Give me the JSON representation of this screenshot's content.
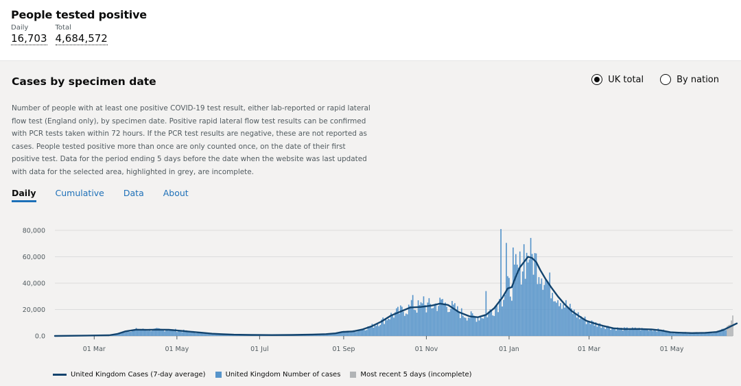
{
  "headline": {
    "title": "People tested positive",
    "daily_label": "Daily",
    "daily_value": "16,703",
    "total_label": "Total",
    "total_value": "4,684,572"
  },
  "card": {
    "title": "Cases by specimen date",
    "radio_uk": "UK total",
    "radio_nation": "By nation",
    "description": "Number of people with at least one positive COVID-19 test result, either lab-reported or rapid lateral flow test (England only), by specimen date. Positive rapid lateral flow test results can be confirmed with PCR tests taken within 72 hours. If the PCR test results are negative, these are not reported as cases. People tested positive more than once are only counted once, on the date of their first positive test. Data for the period ending 5 days before the date when the website was last updated with data for the selected area, highlighted in grey, are incomplete.",
    "tabs": [
      "Daily",
      "Cumulative",
      "Data",
      "About"
    ]
  },
  "colors": {
    "line": "#12436d",
    "bars": "#5694ca",
    "incomplete": "#b1b4b6",
    "tab_link": "#1d70b8"
  },
  "chart_data": {
    "type": "bar+line",
    "title": "Cases by specimen date",
    "ylim": [
      0,
      80000
    ],
    "yticks": [
      0,
      20000,
      40000,
      60000,
      80000
    ],
    "ytick_labels": [
      "0.0",
      "20,000",
      "40,000",
      "60,000",
      "80,000"
    ],
    "xtick_labels": [
      "01 Mar",
      "01 May",
      "01 Jul",
      "01 Sep",
      "01 Nov",
      "01 Jan",
      "01 Mar",
      "01 May"
    ],
    "xtick_days": [
      29,
      90,
      151,
      213,
      274,
      335,
      394,
      455
    ],
    "start_date": "2020-01-31",
    "end_date": "2021-06-13",
    "x_total_days": 500,
    "legend": [
      {
        "label": "United Kingdom Cases (7-day average)",
        "kind": "line"
      },
      {
        "label": "United Kingdom Number of cases",
        "kind": "bar"
      },
      {
        "label": "Most recent 5 days (incomplete)",
        "kind": "bar-incomplete"
      }
    ],
    "series": [
      {
        "name": "United Kingdom Cases (7-day average)",
        "points": [
          [
            0,
            0
          ],
          [
            40,
            500
          ],
          [
            46,
            1500
          ],
          [
            52,
            3500
          ],
          [
            60,
            4800
          ],
          [
            68,
            4600
          ],
          [
            76,
            4800
          ],
          [
            84,
            4700
          ],
          [
            92,
            4000
          ],
          [
            100,
            3200
          ],
          [
            108,
            2500
          ],
          [
            116,
            1700
          ],
          [
            124,
            1300
          ],
          [
            132,
            1000
          ],
          [
            145,
            800
          ],
          [
            160,
            700
          ],
          [
            175,
            800
          ],
          [
            190,
            1100
          ],
          [
            200,
            1400
          ],
          [
            207,
            2000
          ],
          [
            212,
            3000
          ],
          [
            220,
            3500
          ],
          [
            227,
            5000
          ],
          [
            234,
            7500
          ],
          [
            241,
            11000
          ],
          [
            248,
            15500
          ],
          [
            255,
            18500
          ],
          [
            262,
            21500
          ],
          [
            270,
            22000
          ],
          [
            278,
            23000
          ],
          [
            284,
            24500
          ],
          [
            290,
            23500
          ],
          [
            298,
            18000
          ],
          [
            306,
            14800
          ],
          [
            312,
            14200
          ],
          [
            318,
            16000
          ],
          [
            324,
            21000
          ],
          [
            330,
            29000
          ],
          [
            334,
            36000
          ],
          [
            337,
            37000
          ],
          [
            340,
            45000
          ],
          [
            343,
            52000
          ],
          [
            346,
            56000
          ],
          [
            349,
            60000
          ],
          [
            352,
            59000
          ],
          [
            355,
            56000
          ],
          [
            358,
            50000
          ],
          [
            362,
            43000
          ],
          [
            366,
            37000
          ],
          [
            371,
            30000
          ],
          [
            376,
            24000
          ],
          [
            381,
            19000
          ],
          [
            386,
            15500
          ],
          [
            392,
            11500
          ],
          [
            398,
            9500
          ],
          [
            405,
            7500
          ],
          [
            412,
            5800
          ],
          [
            420,
            5200
          ],
          [
            430,
            5300
          ],
          [
            440,
            5000
          ],
          [
            447,
            4200
          ],
          [
            454,
            2800
          ],
          [
            460,
            2500
          ],
          [
            470,
            2200
          ],
          [
            480,
            2400
          ],
          [
            488,
            3000
          ],
          [
            493,
            4500
          ],
          [
            498,
            7000
          ],
          [
            503,
            9500
          ]
        ]
      },
      {
        "name": "United Kingdom Number of cases",
        "values_description": "daily values scatter around the 7-day average; peak day 81,000 (approx. 29 Dec 2020), many days above 65,000 around the New Year peak"
      }
    ]
  }
}
